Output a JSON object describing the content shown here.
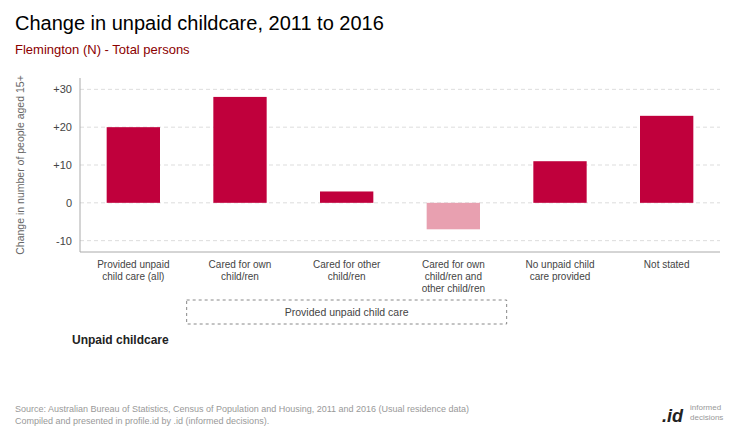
{
  "chart_data": {
    "type": "bar",
    "title": "Change in unpaid childcare, 2011 to 2016",
    "subtitle": "Flemington (N) - Total persons",
    "categories": [
      "Provided unpaid\nchild care (all)",
      "Cared for own\nchild/ren",
      "Cared for other\nchild/ren",
      "Cared for own\nchild/ren and\nother child/ren",
      "No unpaid child\ncare provided",
      "Not stated"
    ],
    "values": [
      20,
      28,
      3,
      -7,
      11,
      23
    ],
    "colors": [
      "#c0003c",
      "#c0003c",
      "#c0003c",
      "#e8a0b0",
      "#c0003c",
      "#c0003c"
    ],
    "ylabel": "Change in number of people aged 15+",
    "xlabel": "Unpaid childcare",
    "ylim": [
      -13,
      33
    ],
    "yticks": [
      -10,
      0,
      {
        "value": 10,
        "label": "+10"
      },
      {
        "value": 20,
        "label": "+20"
      },
      {
        "value": 30,
        "label": "+30"
      }
    ],
    "grid": true,
    "annotations": [
      "Provided unpaid child care",
      "informed\ndecisions",
      ".id"
    ],
    "source": "Source: Australian Bureau of Statistics, Census of Population and Housing, 2011 and 2016 (Usual residence data)\nCompiled and presented in profile.id by .id (informed decisions)."
  }
}
